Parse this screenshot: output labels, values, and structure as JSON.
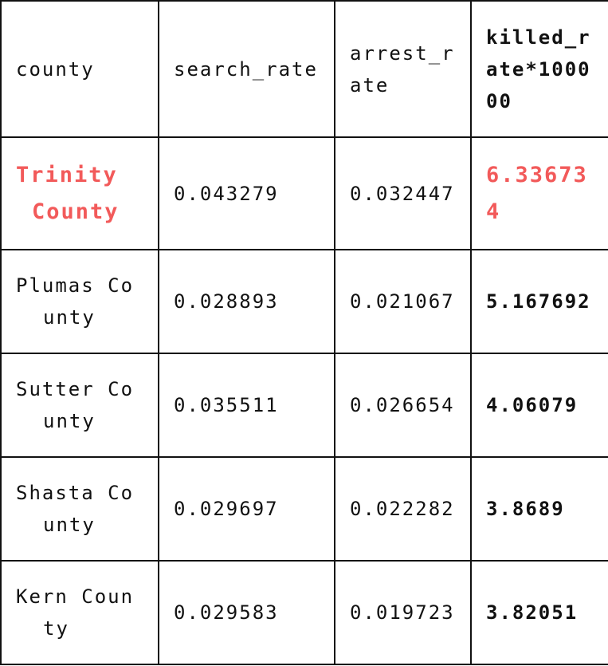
{
  "table": {
    "headers": [
      "county",
      "search_rate",
      "arrest_rate",
      "killed_rate*100000"
    ],
    "rows": [
      {
        "county": "Trinity County",
        "search_rate": "0.043279",
        "arrest_rate": "0.032447",
        "killed_rate": "6.336734",
        "highlight": true
      },
      {
        "county": "Plumas County",
        "search_rate": "0.028893",
        "arrest_rate": "0.021067",
        "killed_rate": "5.167692"
      },
      {
        "county": "Sutter County",
        "search_rate": "0.035511",
        "arrest_rate": "0.026654",
        "killed_rate": "4.06079"
      },
      {
        "county": "Shasta County",
        "search_rate": "0.029697",
        "arrest_rate": "0.022282",
        "killed_rate": "3.8689"
      },
      {
        "county": "Kern County",
        "search_rate": "0.029583",
        "arrest_rate": "0.019723",
        "killed_rate": "3.82051"
      }
    ]
  },
  "colors": {
    "highlight": "#f25a5a",
    "text": "#111111",
    "border": "#111111"
  }
}
